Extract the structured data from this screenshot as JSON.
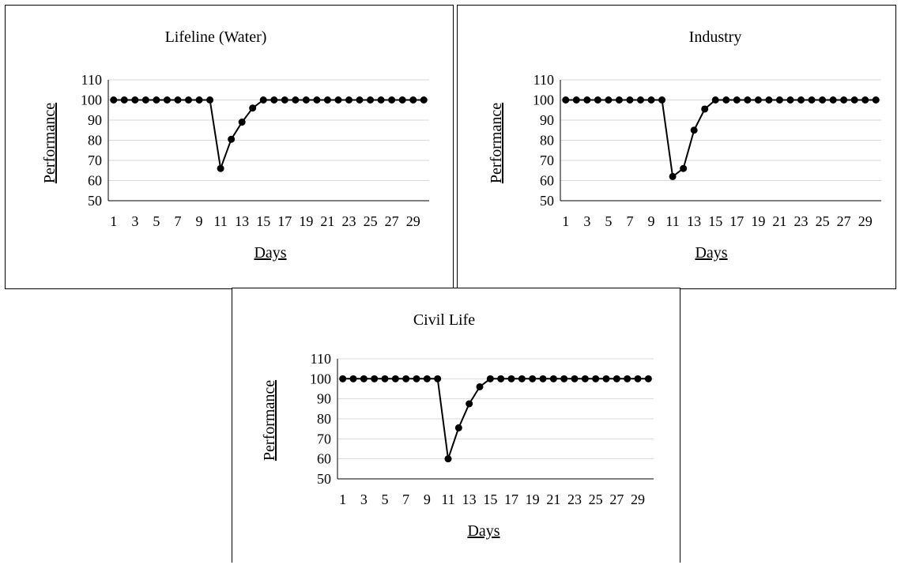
{
  "chart_data": [
    {
      "type": "line",
      "title": "Lifeline (Water)",
      "xlabel": "Days",
      "ylabel": "Performance",
      "x": [
        1,
        2,
        3,
        4,
        5,
        6,
        7,
        8,
        9,
        10,
        11,
        12,
        13,
        14,
        15,
        16,
        17,
        18,
        19,
        20,
        21,
        22,
        23,
        24,
        25,
        26,
        27,
        28,
        29,
        30
      ],
      "xticks": [
        "1",
        "3",
        "5",
        "7",
        "9",
        "11",
        "13",
        "15",
        "17",
        "19",
        "21",
        "23",
        "25",
        "27",
        "29"
      ],
      "series": [
        {
          "values": [
            100,
            100,
            100,
            100,
            100,
            100,
            100,
            100,
            100,
            100,
            66,
            80.5,
            89,
            96,
            100,
            100,
            100,
            100,
            100,
            100,
            100,
            100,
            100,
            100,
            100,
            100,
            100,
            100,
            100,
            100
          ]
        }
      ],
      "ylim": [
        50,
        110
      ],
      "yticks": [
        50,
        60,
        70,
        80,
        90,
        100,
        110
      ],
      "grid": true,
      "legend": "none"
    },
    {
      "type": "line",
      "title": "Industry",
      "xlabel": "Days",
      "ylabel": "Performance",
      "x": [
        1,
        2,
        3,
        4,
        5,
        6,
        7,
        8,
        9,
        10,
        11,
        12,
        13,
        14,
        15,
        16,
        17,
        18,
        19,
        20,
        21,
        22,
        23,
        24,
        25,
        26,
        27,
        28,
        29,
        30
      ],
      "xticks": [
        "1",
        "3",
        "5",
        "7",
        "9",
        "11",
        "13",
        "15",
        "17",
        "19",
        "21",
        "23",
        "25",
        "27",
        "29"
      ],
      "series": [
        {
          "values": [
            100,
            100,
            100,
            100,
            100,
            100,
            100,
            100,
            100,
            100,
            62,
            66,
            85,
            95.5,
            100,
            100,
            100,
            100,
            100,
            100,
            100,
            100,
            100,
            100,
            100,
            100,
            100,
            100,
            100,
            100
          ]
        }
      ],
      "ylim": [
        50,
        110
      ],
      "yticks": [
        50,
        60,
        70,
        80,
        90,
        100,
        110
      ],
      "grid": true,
      "legend": "none"
    },
    {
      "type": "line",
      "title": "Civil Life",
      "xlabel": "Days",
      "ylabel": "Performance",
      "x": [
        1,
        2,
        3,
        4,
        5,
        6,
        7,
        8,
        9,
        10,
        11,
        12,
        13,
        14,
        15,
        16,
        17,
        18,
        19,
        20,
        21,
        22,
        23,
        24,
        25,
        26,
        27,
        28,
        29,
        30
      ],
      "xticks": [
        "1",
        "3",
        "5",
        "7",
        "9",
        "11",
        "13",
        "15",
        "17",
        "19",
        "21",
        "23",
        "25",
        "27",
        "29"
      ],
      "series": [
        {
          "values": [
            100,
            100,
            100,
            100,
            100,
            100,
            100,
            100,
            100,
            100,
            60,
            75.5,
            87.5,
            96,
            100,
            100,
            100,
            100,
            100,
            100,
            100,
            100,
            100,
            100,
            100,
            100,
            100,
            100,
            100,
            100
          ]
        }
      ],
      "ylim": [
        50,
        110
      ],
      "yticks": [
        50,
        60,
        70,
        80,
        90,
        100,
        110
      ],
      "grid": true,
      "legend": "none"
    }
  ]
}
